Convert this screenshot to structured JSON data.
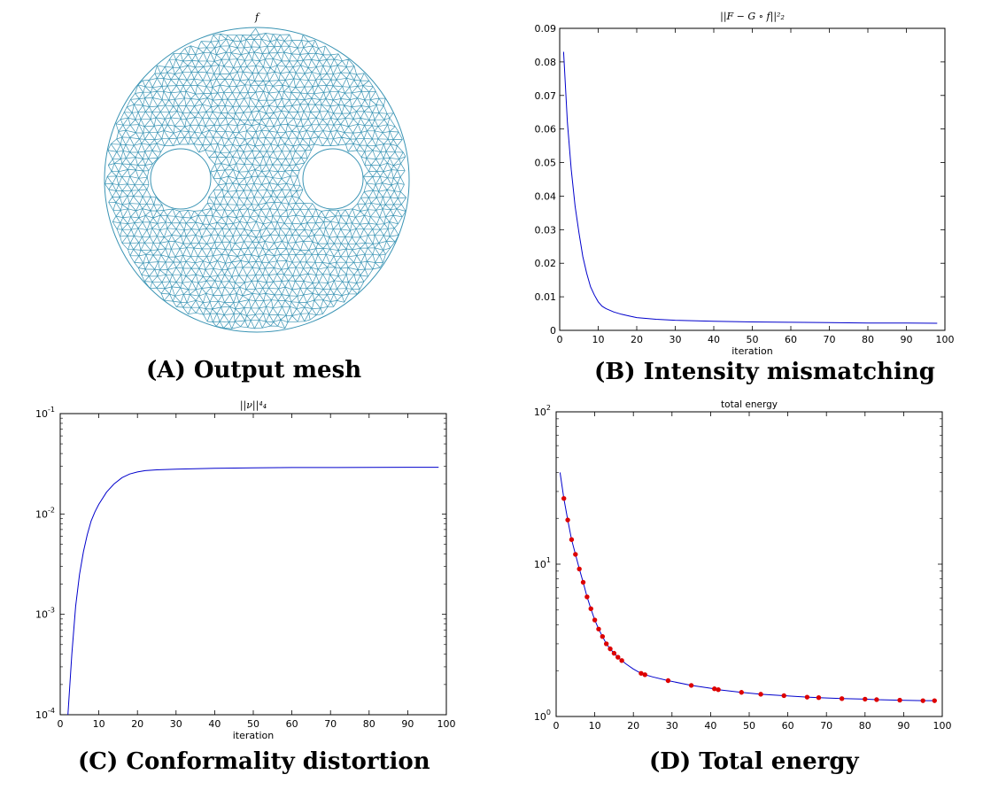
{
  "panels": {
    "a": {
      "caption": "(A) Output mesh",
      "title": "f",
      "mesh_color": "#3a94b4"
    },
    "b": {
      "caption": "(B) Intensity mismatching"
    },
    "c": {
      "caption": "(C) Conformality distortion"
    },
    "d": {
      "caption": "(D) Total energy"
    }
  },
  "chart_data": [
    {
      "id": "b",
      "type": "line",
      "title": "||F − G ∘ f||²₂",
      "xlabel": "iteration",
      "ylabel": "",
      "xlim": [
        0,
        100
      ],
      "ylim": [
        0,
        0.09
      ],
      "xticks": [
        0,
        10,
        20,
        30,
        40,
        50,
        60,
        70,
        80,
        90,
        100
      ],
      "yticks": [
        0,
        0.01,
        0.02,
        0.03,
        0.04,
        0.05,
        0.06,
        0.07,
        0.08,
        0.09
      ],
      "yscale": "linear",
      "line_color": "#0000cc",
      "series": [
        {
          "x": [
            1,
            2,
            3,
            4,
            5,
            6,
            7,
            8,
            9,
            10,
            11,
            12,
            14,
            16,
            18,
            20,
            25,
            30,
            40,
            50,
            60,
            70,
            80,
            90,
            98
          ],
          "y": [
            0.083,
            0.062,
            0.048,
            0.037,
            0.029,
            0.022,
            0.017,
            0.013,
            0.0105,
            0.0085,
            0.0072,
            0.0065,
            0.0055,
            0.0048,
            0.0043,
            0.0038,
            0.0033,
            0.003,
            0.0027,
            0.0025,
            0.0024,
            0.0023,
            0.0022,
            0.0022,
            0.0021
          ]
        }
      ]
    },
    {
      "id": "c",
      "type": "line",
      "title": "||ν||⁴₄",
      "xlabel": "iteration",
      "ylabel": "",
      "xlim": [
        0,
        100
      ],
      "ylim": [
        0.0001,
        0.1
      ],
      "xticks": [
        0,
        10,
        20,
        30,
        40,
        50,
        60,
        70,
        80,
        90,
        100
      ],
      "yticks": [
        0.0001,
        0.001,
        0.01,
        0.1
      ],
      "ytick_labels": [
        {
          "base": "10",
          "exp": "-4"
        },
        {
          "base": "10",
          "exp": "-3"
        },
        {
          "base": "10",
          "exp": "-2"
        },
        {
          "base": "10",
          "exp": "-1"
        }
      ],
      "yscale": "log",
      "line_color": "#0000cc",
      "series": [
        {
          "x": [
            2,
            3,
            4,
            5,
            6,
            7,
            8,
            9,
            10,
            12,
            14,
            16,
            18,
            20,
            22,
            25,
            30,
            40,
            50,
            60,
            70,
            80,
            90,
            98
          ],
          "y": [
            0.0001,
            0.0004,
            0.0012,
            0.0025,
            0.0042,
            0.0062,
            0.0085,
            0.0105,
            0.0125,
            0.0165,
            0.02,
            0.023,
            0.025,
            0.0262,
            0.027,
            0.0275,
            0.028,
            0.0285,
            0.0288,
            0.029,
            0.029,
            0.0291,
            0.0292,
            0.0292
          ]
        }
      ]
    },
    {
      "id": "d",
      "type": "line",
      "title": "total energy",
      "xlabel": "",
      "ylabel": "",
      "xlim": [
        0,
        100
      ],
      "ylim": [
        1,
        100
      ],
      "xticks": [
        0,
        10,
        20,
        30,
        40,
        50,
        60,
        70,
        80,
        90,
        100
      ],
      "yticks": [
        1,
        10,
        100
      ],
      "ytick_labels": [
        {
          "base": "10",
          "exp": "0"
        },
        {
          "base": "10",
          "exp": "1"
        },
        {
          "base": "10",
          "exp": "2"
        }
      ],
      "yscale": "log",
      "line_color": "#0000cc",
      "marker_color": "#dd0000",
      "series": [
        {
          "x": [
            1,
            2,
            3,
            4,
            5,
            6,
            7,
            8,
            9,
            10,
            11,
            12,
            13,
            14,
            15,
            16,
            17,
            18,
            20,
            22,
            23,
            25,
            29,
            35,
            41,
            42,
            48,
            53,
            59,
            65,
            68,
            74,
            80,
            83,
            89,
            95,
            98
          ],
          "y": [
            40,
            27,
            19.5,
            14.5,
            11.6,
            9.3,
            7.6,
            6.1,
            5.1,
            4.3,
            3.75,
            3.35,
            3.0,
            2.78,
            2.6,
            2.45,
            2.33,
            2.22,
            2.05,
            1.92,
            1.88,
            1.82,
            1.72,
            1.6,
            1.52,
            1.5,
            1.44,
            1.4,
            1.37,
            1.34,
            1.33,
            1.31,
            1.3,
            1.29,
            1.28,
            1.27,
            1.27
          ]
        }
      ],
      "markers_x": [
        2,
        3,
        4,
        5,
        6,
        7,
        8,
        9,
        10,
        11,
        12,
        13,
        14,
        15,
        16,
        17,
        22,
        23,
        29,
        35,
        41,
        42,
        48,
        53,
        59,
        65,
        68,
        74,
        80,
        83,
        89,
        95,
        98
      ]
    }
  ]
}
